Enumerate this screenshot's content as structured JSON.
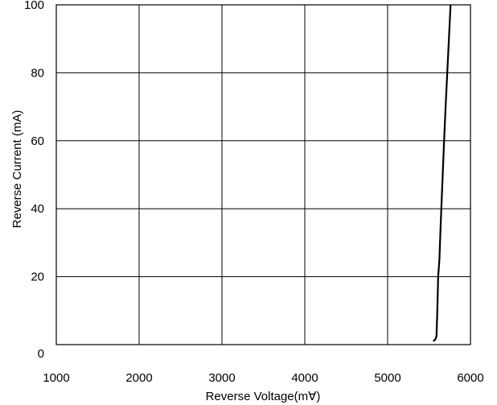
{
  "chart_data": {
    "type": "line",
    "xlabel": "Reverse Voltage(m∀)",
    "ylabel": "Reverse Current (mA)",
    "xlim": [
      1000,
      6000
    ],
    "ylim": [
      0,
      100
    ],
    "xticks": [
      1000,
      2000,
      3000,
      4000,
      5000,
      6000
    ],
    "yticks": [
      0,
      20,
      40,
      60,
      80,
      100
    ],
    "grid": true,
    "series": [
      {
        "x": [
          5550,
          5575,
          5590,
          5600,
          5610,
          5625,
          5640,
          5660,
          5680,
          5700,
          5720,
          5740,
          5760
        ],
        "y": [
          1,
          1.5,
          2.5,
          10,
          20,
          25,
          35,
          47,
          59,
          70,
          80,
          90,
          100
        ]
      }
    ],
    "colors": {
      "line": "#000000",
      "grid": "#000000"
    }
  }
}
